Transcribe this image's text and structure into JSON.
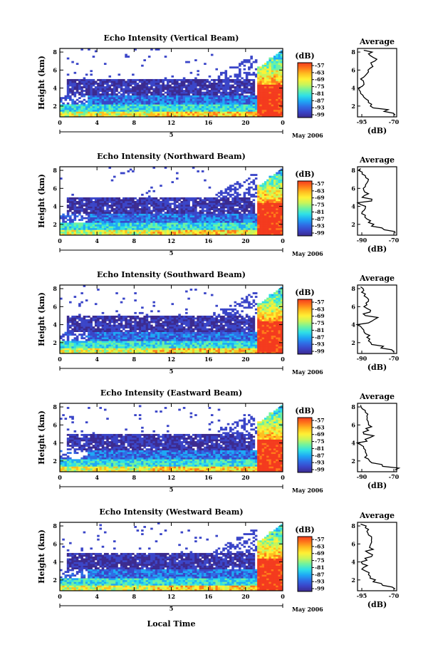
{
  "chart_data": {
    "type": "heatmap",
    "title": "",
    "xlabel": "Local Time",
    "date_label": "May 2006",
    "day_label": "5",
    "x_ticks": [
      "0",
      "4",
      "8",
      "12",
      "16",
      "20",
      "0"
    ],
    "xlim": [
      0,
      24
    ],
    "ylabel": "Height (km)",
    "y_ticks": [
      "2",
      "4",
      "6",
      "8"
    ],
    "ylim": [
      0.8,
      8.4
    ],
    "colorbar": {
      "label": "(dB)",
      "ticks": [
        "-57",
        "-63",
        "-69",
        "-75",
        "-81",
        "-87",
        "-93",
        "-99"
      ],
      "colors": [
        "#f43b1e",
        "#ff7a1a",
        "#ffbf20",
        "#fff035",
        "#c8f55a",
        "#6ef2a0",
        "#2fe0e6",
        "#1ea9f5",
        "#2f6ee6",
        "#3a45c8",
        "#3b2a8f"
      ]
    },
    "average_panel": {
      "title": "Average",
      "xlabel": "(dB)"
    },
    "panels": [
      {
        "title": "Echo Intensity (Vertical Beam)",
        "avg_xticks": [
          "-95",
          "-70"
        ],
        "avg_xlim": [
          -95,
          -70
        ],
        "average_profile": {
          "height_km": [
            1.0,
            1.4,
            1.8,
            2.2,
            2.6,
            3.0,
            3.4,
            3.8,
            4.2,
            4.6,
            5.0,
            5.4,
            5.8,
            6.2,
            6.6,
            7.0,
            7.4,
            7.8,
            8.2
          ],
          "db": [
            -71,
            -78,
            -85,
            -86,
            -88,
            -91,
            -93,
            -94,
            -92,
            -91,
            -93,
            -90,
            -88,
            -87,
            -86,
            -84,
            -85,
            -88,
            -91
          ]
        }
      },
      {
        "title": "Echo Intensity (Northward Beam)",
        "avg_xticks": [
          "-90",
          "-70"
        ],
        "avg_xlim": [
          -95,
          -70
        ],
        "average_profile": {
          "height_km": [
            1.0,
            1.4,
            1.8,
            2.2,
            2.6,
            3.0,
            3.4,
            3.8,
            4.2,
            4.6,
            5.0,
            5.4,
            5.8,
            6.2,
            6.6,
            7.0,
            7.4,
            7.8,
            8.2
          ],
          "db": [
            -71,
            -78,
            -86,
            -88,
            -89,
            -90,
            -92,
            -90,
            -93,
            -86,
            -92,
            -88,
            -91,
            -90,
            -89,
            -88,
            -90,
            -92,
            -93
          ]
        }
      },
      {
        "title": "Echo Intensity (Southward Beam)",
        "avg_xticks": [
          "-90",
          "-70"
        ],
        "avg_xlim": [
          -95,
          -70
        ],
        "average_profile": {
          "height_km": [
            1.0,
            1.4,
            1.8,
            2.2,
            2.6,
            3.0,
            3.4,
            3.8,
            4.2,
            4.6,
            5.0,
            5.4,
            5.8,
            6.2,
            6.6,
            7.0,
            7.4,
            7.8,
            8.2
          ],
          "db": [
            -72,
            -80,
            -86,
            -88,
            -89,
            -90,
            -91,
            -93,
            -88,
            -84,
            -90,
            -87,
            -89,
            -89,
            -88,
            -89,
            -90,
            -91,
            -93
          ]
        }
      },
      {
        "title": "Echo Intensity (Eastward Beam)",
        "avg_xticks": [
          "-90",
          "-70"
        ],
        "avg_xlim": [
          -95,
          -70
        ],
        "average_profile": {
          "height_km": [
            1.0,
            1.4,
            1.8,
            2.2,
            2.6,
            3.0,
            3.4,
            3.8,
            4.2,
            4.6,
            5.0,
            5.4,
            5.8,
            6.2,
            6.6,
            7.0,
            7.4,
            7.8,
            8.2
          ],
          "db": [
            -71,
            -79,
            -86,
            -88,
            -89,
            -90,
            -91,
            -93,
            -89,
            -87,
            -91,
            -88,
            -86,
            -88,
            -89,
            -89,
            -90,
            -92,
            -93
          ]
        }
      },
      {
        "title": "Echo Intensity (Westward Beam)",
        "avg_xticks": [
          "-95",
          "-70"
        ],
        "avg_xlim": [
          -95,
          -70
        ],
        "average_profile": {
          "height_km": [
            1.0,
            1.4,
            1.8,
            2.2,
            2.6,
            3.0,
            3.4,
            3.8,
            4.2,
            4.6,
            5.0,
            5.4,
            5.8,
            6.2,
            6.6,
            7.0,
            7.4,
            7.8,
            8.2
          ],
          "db": [
            -71,
            -79,
            -85,
            -87,
            -88,
            -90,
            -91,
            -92,
            -89,
            -86,
            -88,
            -85,
            -87,
            -86,
            -86,
            -88,
            -89,
            -90,
            -93
          ]
        }
      }
    ]
  }
}
